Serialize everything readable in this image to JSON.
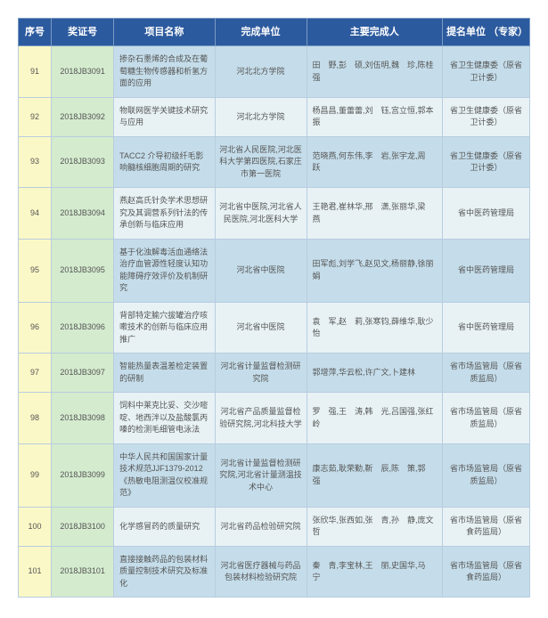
{
  "table": {
    "headers": {
      "seq": "序号",
      "cert": "奖证号",
      "proj": "项目名称",
      "unit": "完成单位",
      "people": "主要完成人",
      "nom": "提名单位\n（专家）"
    },
    "rows": [
      {
        "seq": "91",
        "cert": "2018JB3091",
        "proj": "掺杂石墨烯的合成及在葡萄糖生物传感器和析氢方面的应用",
        "unit": "河北北方学院",
        "people": "田　野,彭　硕,刘伍明,魏　珍,陈桂强",
        "nom": "省卫生健康委（原省卫计委）"
      },
      {
        "seq": "92",
        "cert": "2018JB3092",
        "proj": "物联网医学关键技术研究与应用",
        "unit": "河北北方学院",
        "people": "杨昌昌,董蕾蕾,刘　钰,宫立恒,郭本振",
        "nom": "省卫生健康委（原省卫计委）"
      },
      {
        "seq": "93",
        "cert": "2018JB3093",
        "proj": "TACC2 介导初级纤毛影响髓核细胞周期的研究",
        "unit": "河北省人民医院,河北医科大学第四医院,石家庄市第一医院",
        "people": "范晓燕,何东伟,李　岩,张宇龙,周　跃",
        "nom": "省卫生健康委（原省卫计委）"
      },
      {
        "seq": "94",
        "cert": "2018JB3094",
        "proj": "燕赵高氏针灸学术思想研究及其调营系列针法的传承创新与临床应用",
        "unit": "河北省中医院,河北省人民医院,河北医科大学",
        "people": "王艳君,崔林华,邢　潇,张丽华,梁　燕",
        "nom": "省中医药管理局"
      },
      {
        "seq": "95",
        "cert": "2018JB3095",
        "proj": "基于化浊解毒活血通络法治疗血管源性轻度认知功能障碍疗效评价及机制研究",
        "unit": "河北省中医院",
        "people": "田军彪,刘学飞,赵见文,杨丽静,徐丽娟",
        "nom": "省中医药管理局"
      },
      {
        "seq": "96",
        "cert": "2018JB3096",
        "proj": "背部特定腧穴拔罐治疗咳嗽技术的创新与临床应用推广",
        "unit": "河北省中医院",
        "people": "袁　军,赵　莉,张寒钧,薛维华,耿少怡",
        "nom": "省中医药管理局"
      },
      {
        "seq": "97",
        "cert": "2018JB3097",
        "proj": "智能热量表温差检定装置的研制",
        "unit": "河北省计量监督检测研究院",
        "people": "郭增萍,华云松,许广文,卜建林",
        "nom": "省市场监管局（原省质监局）"
      },
      {
        "seq": "98",
        "cert": "2018JB3098",
        "proj": "饲料中莱克比妥、交沙嘧啶、地西泮以及盐酸氯丙嗪的检测毛细管电泳法",
        "unit": "河北省产品质量监督检验研究院,河北科技大学",
        "people": "罗　强,王　涛,韩　光,吕国强,张红岭",
        "nom": "省市场监管局（原省质监局）"
      },
      {
        "seq": "99",
        "cert": "2018JB3099",
        "proj": "中华人民共和国国家计量技术规范JJF1379-2012《热敏电阻测温仪校准规范》",
        "unit": "河北省计量监督检测研究院,河北省计量测温技术中心",
        "people": "康志茹,耿荣勤,靳　辰,陈　策,郭　强",
        "nom": "省市场监管局（原省质监局）"
      },
      {
        "seq": "100",
        "cert": "2018JB3100",
        "proj": "化学感冒药的质量研究",
        "unit": "河北省药品检验研究院",
        "people": "张欣华,张西如,张　青,孙　静,庞文哲",
        "nom": "省市场监管局（原省食药监局）"
      },
      {
        "seq": "101",
        "cert": "2018JB3101",
        "proj": "直接接触药品的包装材料质量控制技术研究及标准化",
        "unit": "河北省医疗器械与药品包装材料检验研究院",
        "people": "秦　青,李宝林,王　丽,史国华,马　宁",
        "nom": "省市场监管局（原省食药监局）"
      }
    ],
    "stripe_colors": {
      "a": "#c5ddea",
      "b": "#e8f2f5"
    },
    "seq_bg": "#fbf8c7",
    "cert_bg": "#d4ebce",
    "header_bg": "#2c5a9e",
    "header_fg": "#ffffff",
    "border_color": "#b8cce0",
    "text_color": "#555555"
  }
}
